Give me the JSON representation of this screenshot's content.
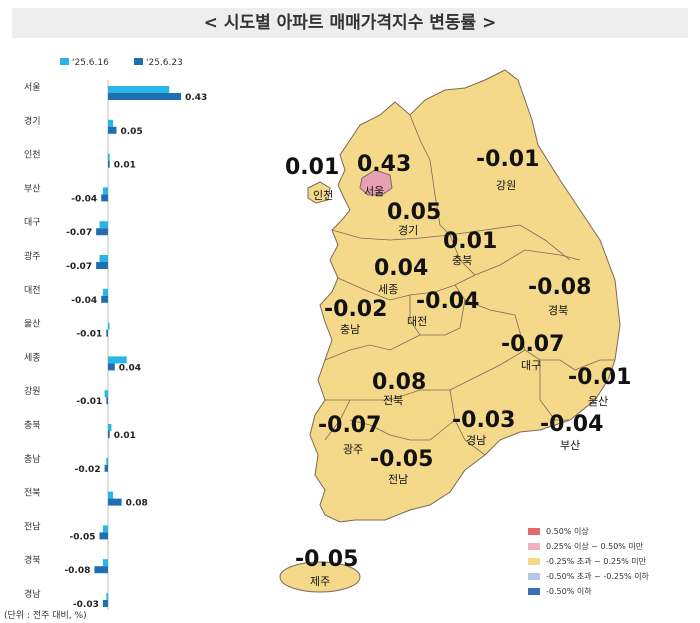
{
  "title": "< 시도별 아파트 매매가격지수 변동률 >",
  "unit_note": "(단위 : 전주 대비, %)",
  "colors": {
    "series1": "#29b6e6",
    "series2": "#1f6fb2",
    "map_fill": "#f5d98b",
    "map_stroke": "#7a6a55",
    "seoul_fill": "#e9a0b4",
    "island_fill": "#f5d98b"
  },
  "chart_data": {
    "type": "bar",
    "orientation": "horizontal",
    "categories": [
      "서울",
      "경기",
      "인천",
      "부산",
      "대구",
      "광주",
      "대전",
      "울산",
      "세종",
      "강원",
      "충북",
      "충남",
      "전북",
      "전남",
      "경북",
      "경남",
      "제주"
    ],
    "series": [
      {
        "name": "'25.6.16",
        "values": [
          0.36,
          0.03,
          0.01,
          -0.03,
          -0.05,
          -0.05,
          -0.03,
          0.0,
          0.11,
          -0.02,
          0.02,
          -0.01,
          0.03,
          -0.03,
          -0.03,
          -0.01,
          -0.02
        ]
      },
      {
        "name": "'25.6.23",
        "values": [
          0.43,
          0.05,
          0.01,
          -0.04,
          -0.07,
          -0.07,
          -0.04,
          -0.01,
          0.04,
          -0.01,
          0.01,
          -0.02,
          0.08,
          -0.05,
          -0.08,
          -0.03,
          -0.05
        ]
      }
    ],
    "data_labels": [
      "0.43",
      "0.05",
      "0.01",
      "-0.04",
      "-0.07",
      "-0.07",
      "-0.04",
      "-0.01",
      "0.04",
      "-0.01",
      "0.01",
      "-0.02",
      "0.08",
      "-0.05",
      "-0.08",
      "-0.03",
      "-0.05"
    ],
    "xlim": [
      -0.1,
      0.45
    ]
  },
  "map": {
    "regions": [
      {
        "name": "인천",
        "value": "0.01"
      },
      {
        "name": "서울",
        "value": "0.43"
      },
      {
        "name": "강원",
        "value": "-0.01"
      },
      {
        "name": "경기",
        "value": "0.05"
      },
      {
        "name": "충북",
        "value": "0.01"
      },
      {
        "name": "세종",
        "value": "0.04"
      },
      {
        "name": "충남",
        "value": "-0.02"
      },
      {
        "name": "대전",
        "value": "-0.04"
      },
      {
        "name": "경북",
        "value": "-0.08"
      },
      {
        "name": "대구",
        "value": "-0.07"
      },
      {
        "name": "울산",
        "value": "-0.01"
      },
      {
        "name": "전북",
        "value": "0.08"
      },
      {
        "name": "광주",
        "value": "-0.07"
      },
      {
        "name": "경남",
        "value": "-0.03"
      },
      {
        "name": "부산",
        "value": "-0.04"
      },
      {
        "name": "전남",
        "value": "-0.05"
      },
      {
        "name": "제주",
        "value": "-0.05"
      }
    ]
  },
  "legend": [
    {
      "label": "0.50% 이상",
      "color": "#e46a6f"
    },
    {
      "label": "0.25% 이상 ~ 0.50% 미만",
      "color": "#efb1bf"
    },
    {
      "label": "-0.25% 초과 ~ 0.25% 미만",
      "color": "#f5d98b"
    },
    {
      "label": "-0.50% 초과 ~ -0.25% 이하",
      "color": "#b7c8e6"
    },
    {
      "label": "-0.50% 이하",
      "color": "#3a6fb4"
    }
  ]
}
